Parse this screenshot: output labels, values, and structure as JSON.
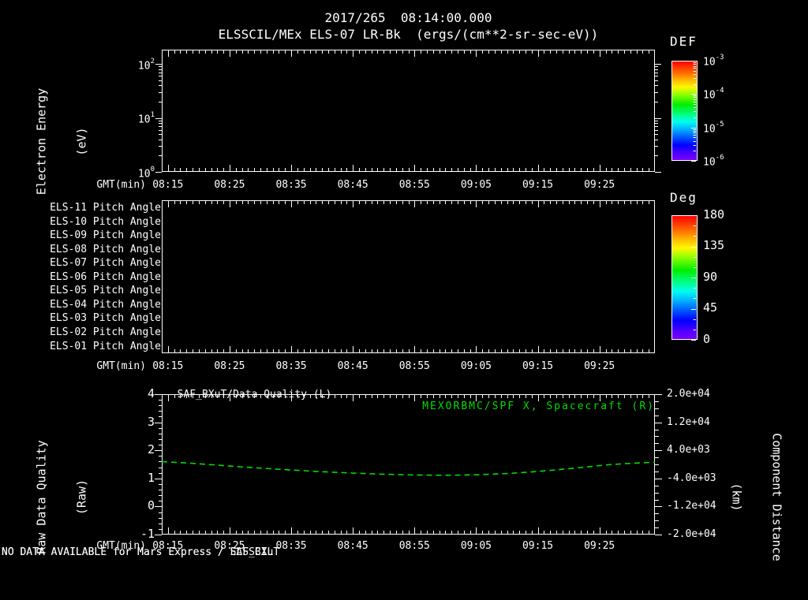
{
  "page": {
    "title_line1": "2017/265  08:14:00.000",
    "title_line2": "ELSSCIL/MEx ELS-07 LR-Bk  (ergs/(cm**2-sr-sec-eV))"
  },
  "time_axis": {
    "label": "GMT(min)",
    "tick_labels": [
      "08:15",
      "08:25",
      "08:35",
      "08:45",
      "08:55",
      "09:05",
      "09:15",
      "09:25"
    ],
    "start_time": "08:14:00",
    "end_time": "09:34:00"
  },
  "energy_panel": {
    "ylabel": "Electron Energy",
    "ylabel_units": "(eV)",
    "yticks": [
      {
        "base": "10",
        "exp": "2"
      },
      {
        "base": "10",
        "exp": "1"
      },
      {
        "base": "10",
        "exp": "0"
      }
    ],
    "colorbar": {
      "title": "DEF",
      "tick_labels": [
        {
          "base": "10",
          "exp": "-3"
        },
        {
          "base": "10",
          "exp": "-4"
        },
        {
          "base": "10",
          "exp": "-5"
        },
        {
          "base": "10",
          "exp": "-6"
        }
      ]
    }
  },
  "pitch_panel": {
    "row_labels": [
      "ELS-11 Pitch Angle",
      "ELS-10 Pitch Angle",
      "ELS-09 Pitch Angle",
      "ELS-08 Pitch Angle",
      "ELS-07 Pitch Angle",
      "ELS-06 Pitch Angle",
      "ELS-05 Pitch Angle",
      "ELS-04 Pitch Angle",
      "ELS-03 Pitch Angle",
      "ELS-02 Pitch Angle",
      "ELS-01 Pitch Angle"
    ],
    "colorbar": {
      "title": "Deg",
      "tick_labels": [
        "180",
        "135",
        "90",
        "45",
        "0"
      ]
    }
  },
  "quality_panel": {
    "title_left": "SAF_BXuT/Data Quality (L)",
    "title_right": "MEXORBMC/SPF X, Spacecraft (R)",
    "ylabel_left": "Raw Data Quality",
    "ylabel_left_units": "(Raw)",
    "ylabel_right": "Component Distance",
    "ylabel_right_units": "(km)",
    "left_tick_labels": [
      "4",
      "3",
      "2",
      "1",
      "0",
      "-1"
    ],
    "right_tick_labels": [
      "2.0e+04",
      "1.2e+04",
      "4.0e+03",
      "-4.0e+03",
      "-1.2e+04",
      "-2.0e+04"
    ]
  },
  "status_overlay": {
    "message_1": "NO DATA AVAILABLE for Mars Express / ELSSCIL",
    "message_2": "NO DATA AVAILABLE for Mars Express / SAF_BXuT"
  },
  "colors": {
    "background": "#000000",
    "foreground": "#ffffff",
    "series_green": "#00dd00",
    "rainbow_top_to_bottom": [
      "#ff0000",
      "#ff6600",
      "#ffcc00",
      "#fff700",
      "#88ff00",
      "#00ee00",
      "#00ff88",
      "#00ffee",
      "#00bbff",
      "#0055ff",
      "#0000ff",
      "#7b00ff"
    ]
  },
  "chart_data": [
    {
      "type": "heatmap",
      "panel": "electron-energy-spectrogram",
      "title": "2017/265  08:14:00.000",
      "subtitle": "ELSSCIL/MEx ELS-07 LR-Bk  (ergs/(cm**2-sr-sec-eV))",
      "xlabel": "GMT(min)",
      "x_range": [
        "08:14:00",
        "09:34:00"
      ],
      "x_ticks": [
        "08:15",
        "08:25",
        "08:35",
        "08:45",
        "08:55",
        "09:05",
        "09:15",
        "09:25"
      ],
      "ylabel": "Electron Energy (eV)",
      "yscale": "log",
      "y_ticks": [
        1,
        10,
        100
      ],
      "colorbar": {
        "label": "DEF",
        "units": "ergs/(cm**2-sr-sec-eV)",
        "scale": "log",
        "ticks": [
          0.001,
          0.0001,
          1e-05,
          1e-06
        ]
      },
      "values": [],
      "note": "panel empty - no data plotted"
    },
    {
      "type": "heatmap",
      "panel": "pitch-angle-rows",
      "rows": [
        "ELS-11",
        "ELS-10",
        "ELS-09",
        "ELS-08",
        "ELS-07",
        "ELS-06",
        "ELS-05",
        "ELS-04",
        "ELS-03",
        "ELS-02",
        "ELS-01"
      ],
      "xlabel": "GMT(min)",
      "x_range": [
        "08:14:00",
        "09:34:00"
      ],
      "x_ticks": [
        "08:15",
        "08:25",
        "08:35",
        "08:45",
        "08:55",
        "09:05",
        "09:15",
        "09:25"
      ],
      "colorbar": {
        "label": "Deg",
        "range": [
          0,
          180
        ],
        "ticks": [
          180,
          135,
          90,
          45,
          0
        ]
      },
      "values": [],
      "note": "panel empty - no data plotted"
    },
    {
      "type": "line",
      "panel": "quality-and-distance",
      "title_left": "SAF_BXuT/Data Quality (L)",
      "title_right": "MEXORBMC/SPF X, Spacecraft (R)",
      "xlabel": "GMT(min)",
      "x_range": [
        "08:14:00",
        "09:34:00"
      ],
      "x_ticks": [
        "08:15",
        "08:25",
        "08:35",
        "08:45",
        "08:55",
        "09:05",
        "09:15",
        "09:25"
      ],
      "left_axis": {
        "label": "Raw Data Quality (Raw)",
        "range": [
          -1,
          4
        ],
        "ticks": [
          4,
          3,
          2,
          1,
          0,
          -1
        ]
      },
      "right_axis": {
        "label": "Component Distance (km)",
        "range": [
          -20000,
          20000
        ],
        "ticks": [
          20000,
          12000,
          4000,
          -4000,
          -12000,
          -20000
        ]
      },
      "series": [
        {
          "name": "MEXORBMC/SPF X, Spacecraft (R)",
          "axis": "right",
          "color": "#00dd00",
          "style": "dashed",
          "x_minutes_after_start": [
            0,
            5,
            10,
            15,
            20,
            25,
            30,
            35,
            40,
            44,
            48,
            52,
            56,
            60,
            64,
            68,
            72,
            76,
            80
          ],
          "y_km": [
            800,
            300,
            -350,
            -950,
            -1500,
            -2000,
            -2400,
            -2750,
            -2980,
            -3080,
            -3060,
            -2900,
            -2600,
            -2150,
            -1550,
            -900,
            -150,
            300,
            600
          ]
        }
      ],
      "note": "SAF_BXuT quality series absent (NO DATA AVAILABLE)"
    }
  ]
}
